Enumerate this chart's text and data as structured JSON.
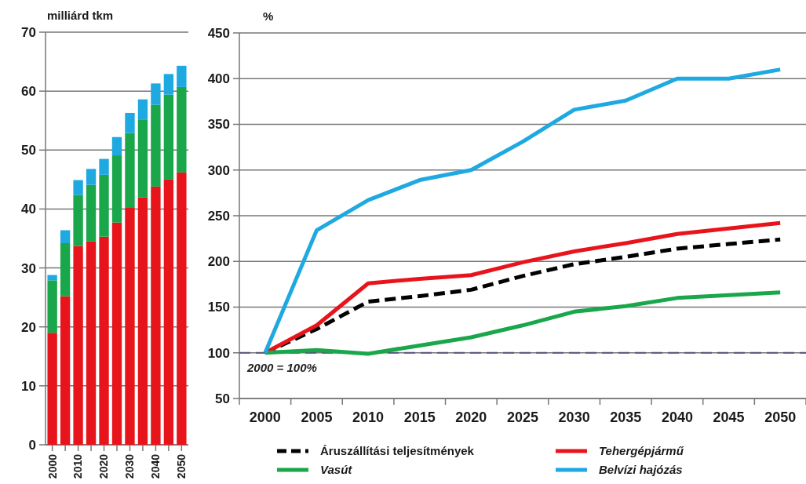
{
  "chart_data": [
    {
      "type": "bar",
      "stacked": true,
      "ylabel": "milliárd tkm",
      "categories": [
        "2000",
        null,
        "2010",
        null,
        "2020",
        null,
        "2030",
        null,
        "2040",
        null,
        "2050"
      ],
      "ylim": [
        0,
        70
      ],
      "yticks": [
        0,
        10,
        20,
        30,
        40,
        50,
        60,
        70
      ],
      "grid": "y",
      "series": [
        {
          "color": "#e8141b",
          "values": [
            19.0,
            25.2,
            33.7,
            34.5,
            35.3,
            37.7,
            40.3,
            42.0,
            43.8,
            45.0,
            46.2
          ]
        },
        {
          "color": "#1aa64a",
          "values": [
            8.9,
            9.0,
            8.7,
            9.6,
            10.5,
            11.4,
            12.6,
            13.2,
            13.9,
            14.4,
            14.5
          ]
        },
        {
          "color": "#1ea9e1",
          "values": [
            0.9,
            2.2,
            2.5,
            2.7,
            2.7,
            3.1,
            3.4,
            3.4,
            3.6,
            3.5,
            3.6
          ]
        }
      ]
    },
    {
      "type": "line",
      "ylabel": "%",
      "categories": [
        "2000",
        "2005",
        "2010",
        "2015",
        "2020",
        "2025",
        "2030",
        "2035",
        "2040",
        "2045",
        "2050"
      ],
      "ylim": [
        50,
        450
      ],
      "yticks": [
        50,
        100,
        150,
        200,
        250,
        300,
        350,
        400,
        450
      ],
      "grid": "y",
      "legend": "bottom",
      "ref_lines": [
        {
          "axis": "y",
          "value": 100,
          "label": "2000 = 100%",
          "color": "#55557a",
          "line_style": "dashed"
        }
      ],
      "series": [
        {
          "name": "Áruszállítási teljesítmények",
          "color": "#000000",
          "line_style": "dashed",
          "values": [
            100,
            126,
            156,
            162,
            169,
            184,
            197,
            205,
            214,
            219,
            224
          ]
        },
        {
          "name": "Tehergépjármű",
          "color": "#e8141b",
          "values": [
            100,
            130,
            176,
            181,
            185,
            199,
            211,
            220,
            230,
            236,
            242
          ]
        },
        {
          "name": "Vasút",
          "color": "#1aa64a",
          "values": [
            100,
            103,
            99,
            108,
            117,
            130,
            145,
            151,
            160,
            163,
            166
          ]
        },
        {
          "name": "Belvízi hajózás",
          "color": "#1ea9e1",
          "values": [
            100,
            234,
            267,
            289,
            300,
            331,
            366,
            376,
            400,
            400,
            410
          ]
        }
      ]
    }
  ]
}
